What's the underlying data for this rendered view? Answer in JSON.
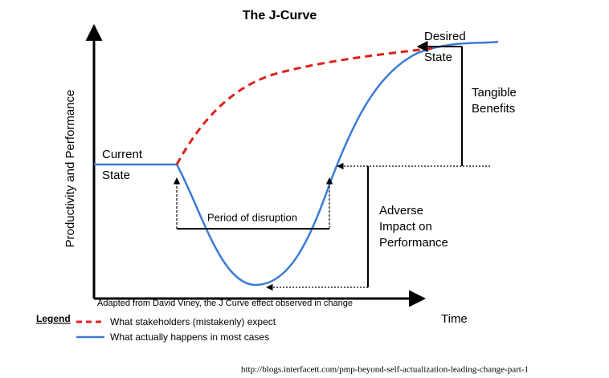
{
  "title": "The J-Curve",
  "y_axis_label": "Productivity and Performance",
  "x_axis_label": "Time",
  "current_state": [
    "Current",
    "State"
  ],
  "desired_state": [
    "Desired",
    "State"
  ],
  "tangible_benefits": [
    "Tangible",
    "Benefits"
  ],
  "period_of_disruption": "Period of disruption",
  "adverse_impact": [
    "Adverse",
    "Impact on",
    "Performance"
  ],
  "source_note": "Adapted from David Viney, the J Curve effect observed in change",
  "legend": {
    "title": "Legend",
    "items": [
      "What stakeholders (mistakenly) expect",
      "What actually happens in most cases"
    ]
  },
  "url": "http://blogs.interfacett.com/pmp-beyond-self-actualization-leading-change-part-1"
}
